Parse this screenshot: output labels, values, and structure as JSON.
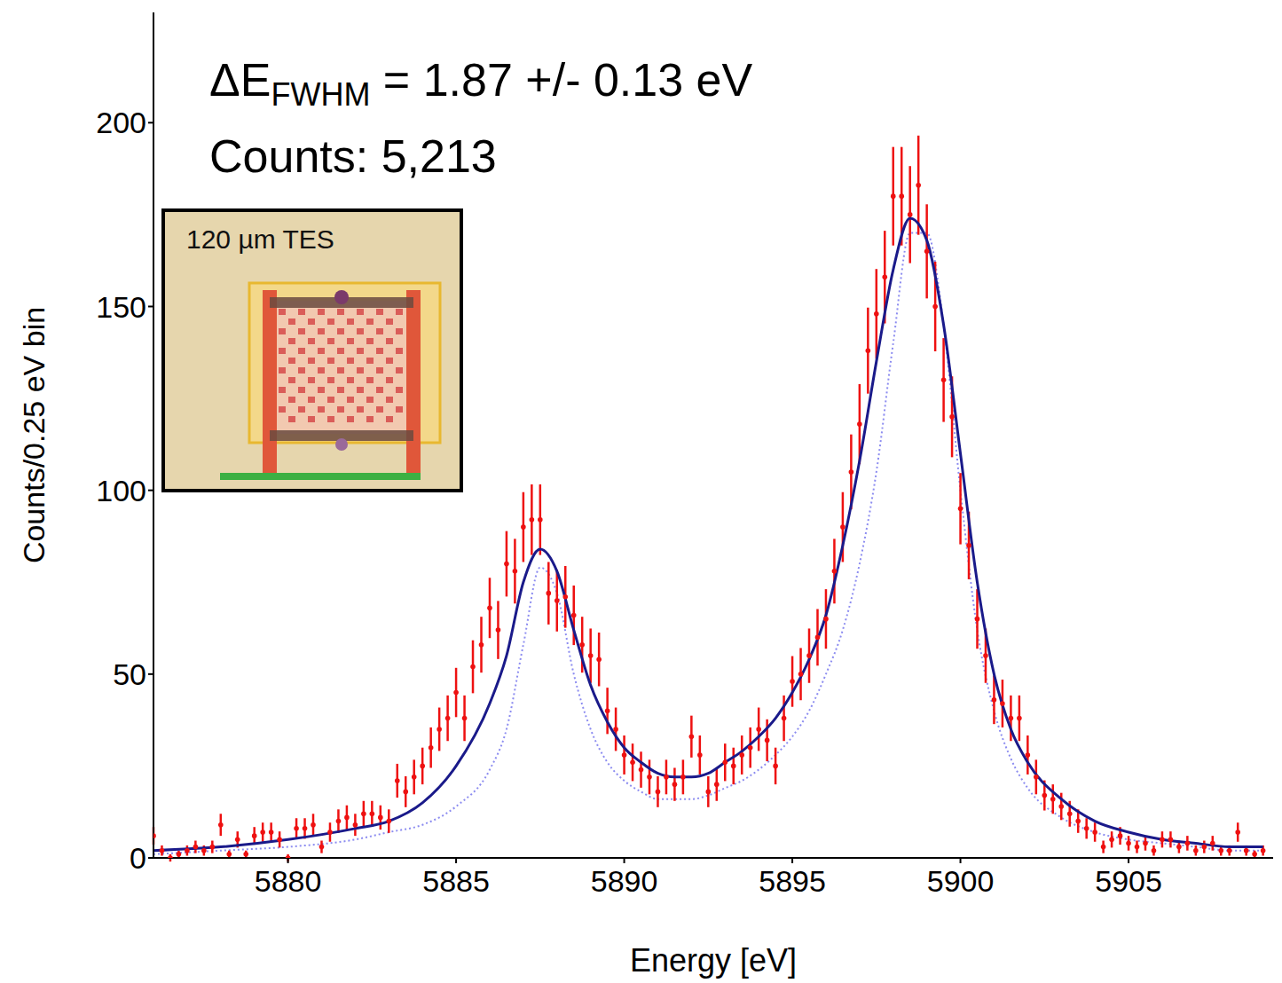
{
  "chart_data": {
    "type": "scatter",
    "x_label": "Energy [eV]",
    "y_label": "Counts/0.25 eV bin",
    "xlim": [
      5876,
      5909.3
    ],
    "ylim": [
      0,
      230
    ],
    "xticks": [
      5880,
      5885,
      5890,
      5895,
      5900,
      5905
    ],
    "yticks": [
      0,
      50,
      100,
      150,
      200
    ],
    "grid": false,
    "resolution_label": {
      "main": "ΔE",
      "sub": "FWHM",
      "text": "= 1.87 +/- 0.13 eV"
    },
    "counts_label": "Counts: 5,213",
    "inset": {
      "label": "120 µm TES"
    },
    "series": [
      {
        "type": "line",
        "color": "#8c8cf0",
        "line_style": "dotted",
        "x": [
          5876,
          5878,
          5880,
          5882,
          5883,
          5884,
          5885,
          5886,
          5886.5,
          5887,
          5887.5,
          5888,
          5888.5,
          5889,
          5889.5,
          5890,
          5890.5,
          5891,
          5891.5,
          5892,
          5892.5,
          5893,
          5893.5,
          5894,
          5894.5,
          5895,
          5895.5,
          5896,
          5896.5,
          5897,
          5897.5,
          5898,
          5898.5,
          5899,
          5899.5,
          5900,
          5900.5,
          5901,
          5901.5,
          5902,
          5903,
          5904,
          5905,
          5906,
          5907,
          5908,
          5909
        ],
        "values": [
          1,
          2,
          3,
          5,
          7,
          9,
          14,
          24,
          35,
          58,
          79,
          72,
          50,
          35,
          26,
          21,
          18,
          16,
          16,
          16,
          17,
          19,
          21,
          24,
          28,
          33,
          40,
          50,
          62,
          80,
          105,
          140,
          170,
          170,
          145,
          100,
          62,
          40,
          27,
          19,
          11,
          7,
          5,
          4,
          3,
          2,
          2
        ]
      },
      {
        "type": "scatter",
        "color": "#ee1111",
        "x": [
          5876,
          5876.25,
          5876.5,
          5876.75,
          5877,
          5877.25,
          5877.5,
          5877.75,
          5878,
          5878.25,
          5878.5,
          5878.75,
          5879,
          5879.25,
          5879.5,
          5879.75,
          5880,
          5880.25,
          5880.5,
          5880.75,
          5881,
          5881.25,
          5881.5,
          5881.75,
          5882,
          5882.25,
          5882.5,
          5882.75,
          5883,
          5883.25,
          5883.5,
          5883.75,
          5884,
          5884.25,
          5884.5,
          5884.75,
          5885,
          5885.25,
          5885.5,
          5885.75,
          5886,
          5886.25,
          5886.5,
          5886.75,
          5887,
          5887.25,
          5887.5,
          5887.75,
          5888,
          5888.25,
          5888.5,
          5888.75,
          5889,
          5889.25,
          5889.5,
          5889.75,
          5890,
          5890.25,
          5890.5,
          5890.75,
          5891,
          5891.25,
          5891.5,
          5891.75,
          5892,
          5892.25,
          5892.5,
          5892.75,
          5893,
          5893.25,
          5893.5,
          5893.75,
          5894,
          5894.25,
          5894.5,
          5894.75,
          5895,
          5895.25,
          5895.5,
          5895.75,
          5896,
          5896.25,
          5896.5,
          5896.75,
          5897,
          5897.25,
          5897.5,
          5897.75,
          5898,
          5898.25,
          5898.5,
          5898.75,
          5899,
          5899.25,
          5899.5,
          5899.75,
          5900,
          5900.25,
          5900.5,
          5900.75,
          5901,
          5901.25,
          5901.5,
          5901.75,
          5902,
          5902.25,
          5902.5,
          5902.75,
          5903,
          5903.25,
          5903.5,
          5903.75,
          5904,
          5904.25,
          5904.5,
          5904.75,
          5905,
          5905.25,
          5905.5,
          5905.75,
          5906,
          5906.25,
          5906.5,
          5906.75,
          5907,
          5907.25,
          5907.5,
          5907.75,
          5908,
          5908.25,
          5908.5,
          5908.75,
          5909
        ],
        "values": [
          6,
          2,
          0,
          1,
          2,
          3,
          2,
          3,
          9,
          1,
          5,
          1,
          6,
          7,
          7,
          5,
          0,
          8,
          8,
          9,
          3,
          7,
          10,
          11,
          9,
          12,
          12,
          11,
          10,
          21,
          18,
          22,
          25,
          30,
          35,
          38,
          45,
          38,
          52,
          58,
          68,
          62,
          80,
          78,
          90,
          92,
          92,
          72,
          70,
          71,
          66,
          58,
          55,
          54,
          40,
          35,
          28,
          26,
          24,
          22,
          18,
          22,
          20,
          22,
          33,
          28,
          18,
          20,
          26,
          25,
          28,
          30,
          35,
          32,
          25,
          38,
          48,
          50,
          55,
          60,
          65,
          78,
          90,
          105,
          118,
          138,
          148,
          158,
          180,
          180,
          175,
          183,
          165,
          150,
          130,
          120,
          95,
          85,
          65,
          55,
          43,
          42,
          38,
          38,
          28,
          22,
          17,
          16,
          14,
          12,
          10,
          8,
          7,
          3,
          5,
          6,
          4,
          3,
          4,
          2,
          5,
          5,
          3,
          4,
          2,
          3,
          4,
          2,
          2,
          7,
          2,
          1,
          2
        ],
        "errors": [
          2.4,
          1.4,
          1,
          1,
          1.4,
          1.7,
          1.4,
          1.7,
          3,
          1,
          2.2,
          1,
          2.4,
          2.6,
          2.6,
          2.2,
          1,
          2.8,
          2.8,
          3,
          1.7,
          2.6,
          3.2,
          3.3,
          3,
          3.5,
          3.5,
          3.3,
          3.2,
          4.6,
          4.2,
          4.7,
          5,
          5.5,
          5.9,
          6.2,
          6.7,
          6.2,
          7.2,
          7.6,
          8.2,
          7.9,
          8.9,
          8.8,
          9.5,
          9.6,
          9.6,
          8.5,
          8.4,
          8.4,
          8.1,
          7.6,
          7.4,
          7.3,
          6.3,
          5.9,
          5.3,
          5.1,
          4.9,
          4.7,
          4.2,
          4.7,
          4.5,
          4.7,
          5.7,
          5.3,
          4.2,
          4.5,
          5.1,
          5,
          5.3,
          5.5,
          5.9,
          5.7,
          5,
          6.2,
          6.9,
          7.1,
          7.4,
          7.7,
          8.1,
          8.8,
          9.5,
          10.2,
          10.9,
          11.7,
          12.2,
          12.6,
          13.4,
          13.4,
          13.2,
          13.5,
          12.8,
          12.2,
          11.4,
          11,
          9.7,
          9.2,
          8.1,
          7.4,
          6.6,
          6.5,
          6.2,
          6.2,
          5.3,
          4.7,
          4.1,
          4,
          3.7,
          3.5,
          3.2,
          2.8,
          2.6,
          1.7,
          2.2,
          2.4,
          2,
          1.7,
          2,
          1.4,
          2.2,
          2.2,
          1.7,
          2,
          1.4,
          1.7,
          2,
          1.4,
          1.4,
          2.6,
          1.4,
          1,
          1.4
        ]
      },
      {
        "type": "line",
        "color": "#1a1a8a",
        "line_style": "solid",
        "x": [
          5876,
          5878,
          5880,
          5882,
          5883,
          5884,
          5885,
          5886,
          5886.5,
          5887,
          5887.5,
          5888,
          5888.5,
          5889,
          5889.5,
          5890,
          5890.5,
          5891,
          5891.5,
          5892,
          5892.5,
          5893,
          5893.5,
          5894,
          5894.5,
          5895,
          5895.5,
          5896,
          5896.5,
          5897,
          5897.5,
          5898,
          5898.5,
          5899,
          5899.5,
          5900,
          5900.5,
          5901,
          5901.5,
          5902,
          5903,
          5904,
          5905,
          5906,
          5907,
          5908,
          5909
        ],
        "values": [
          2,
          3,
          5,
          8,
          10,
          15,
          25,
          42,
          55,
          75,
          84,
          78,
          62,
          47,
          37,
          30,
          26,
          23,
          22,
          22,
          23,
          26,
          29,
          33,
          38,
          45,
          54,
          66,
          85,
          108,
          135,
          160,
          174,
          168,
          145,
          110,
          75,
          50,
          35,
          26,
          16,
          10,
          7,
          5,
          4,
          3,
          3
        ]
      }
    ]
  }
}
